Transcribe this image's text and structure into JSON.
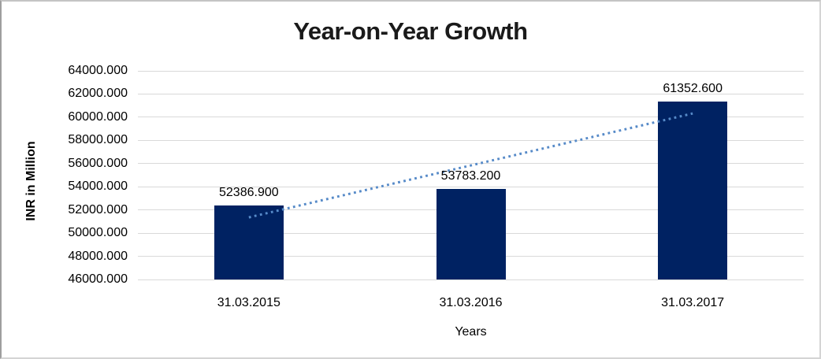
{
  "chart_data": {
    "type": "bar",
    "title": "Year-on-Year Growth",
    "xlabel": "Years",
    "ylabel": "INR in Million",
    "categories": [
      "31.03.2015",
      "31.03.2016",
      "31.03.2017"
    ],
    "values": [
      52386.9,
      53783.2,
      61352.6
    ],
    "data_labels": [
      "52386.900",
      "53783.200",
      "61352.600"
    ],
    "ylim": [
      46000,
      64000
    ],
    "ytick_step": 2000,
    "ytick_labels": [
      "46000.000",
      "48000.000",
      "50000.000",
      "52000.000",
      "54000.000",
      "56000.000",
      "58000.000",
      "60000.000",
      "62000.000",
      "64000.000"
    ],
    "grid": true,
    "legend": "none",
    "trendline": {
      "type": "linear",
      "style": "dotted",
      "color": "#568ac8"
    },
    "colors": {
      "bar": "#002262",
      "gridline": "#d9d9d9",
      "text": "#000000",
      "title": "#1a1a1a"
    }
  }
}
